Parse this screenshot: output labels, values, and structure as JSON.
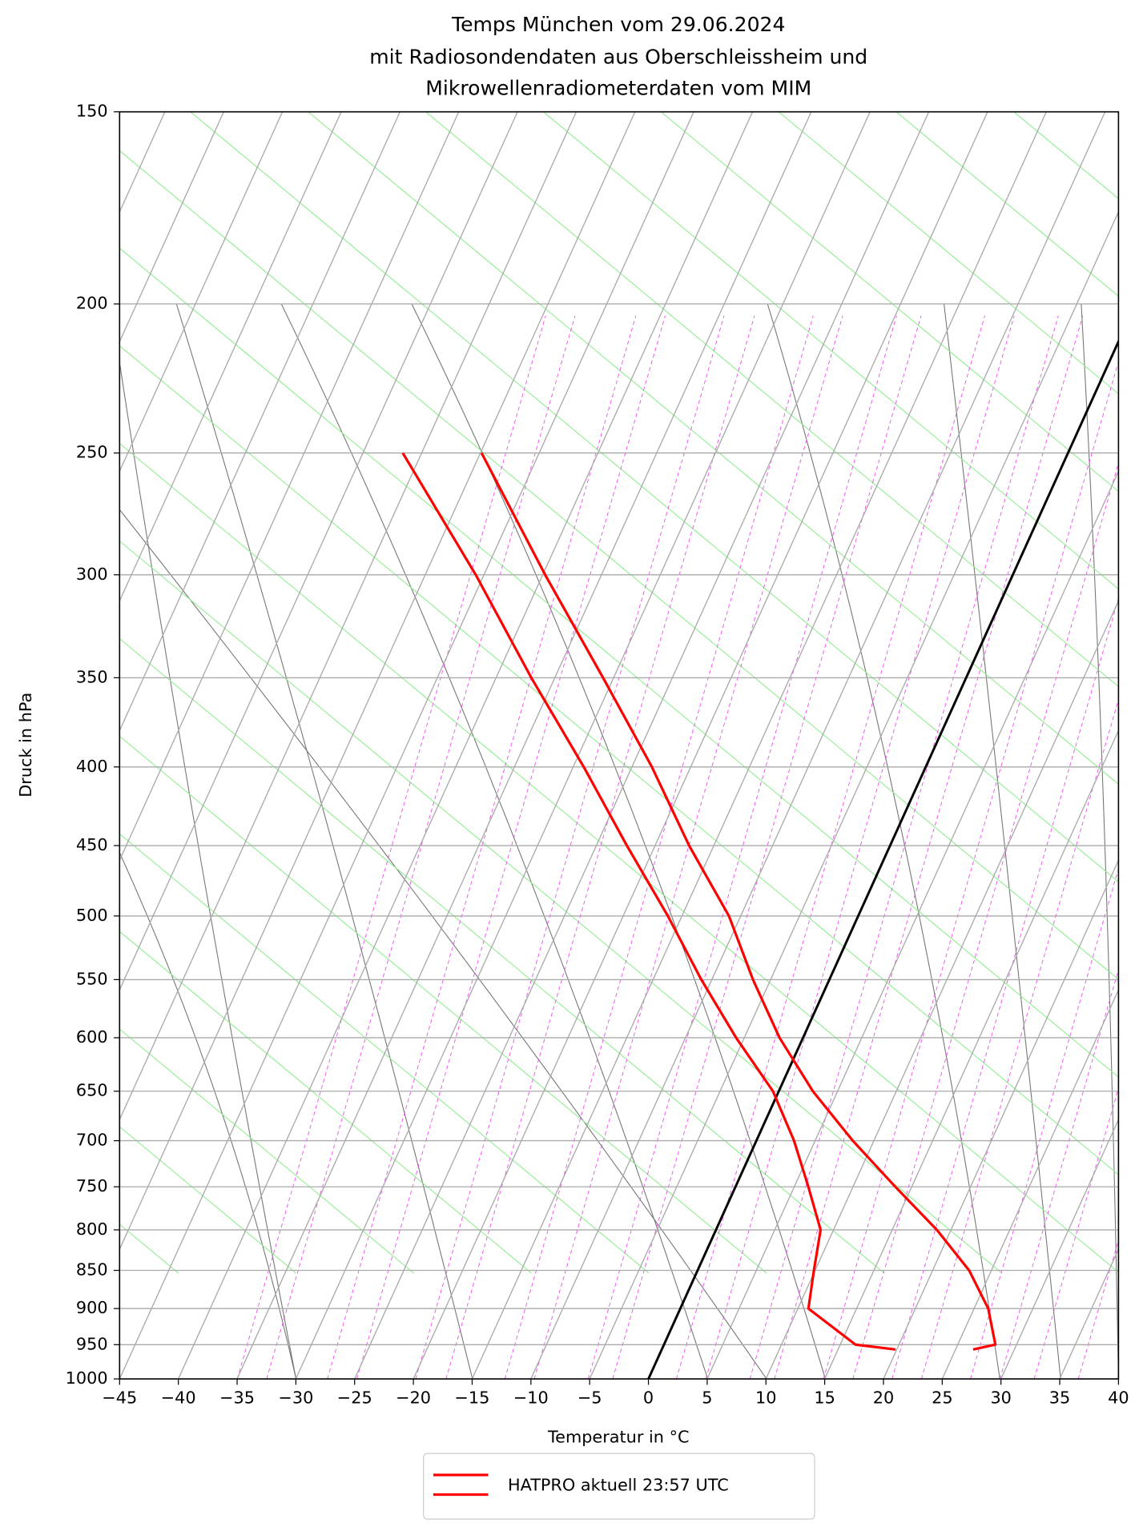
{
  "chart_data": {
    "type": "skewt",
    "title": [
      "Temps München vom 29.06.2024",
      "mit Radiosondendaten aus Oberschleissheim und",
      "Mikrowellenradiometerdaten vom MIM"
    ],
    "x_label": "Temperatur in °C",
    "y_label": "Druck in hPa",
    "x": [
      250,
      300,
      350,
      400,
      450,
      500,
      550,
      600,
      650,
      700,
      750,
      800,
      850,
      900,
      950,
      957
    ],
    "series": [
      {
        "name": "HATPRO aktuell 23:57 UTC",
        "color": "#ff0000",
        "values": [
          -49.9,
          -39.8,
          -30.9,
          -23.3,
          -17.1,
          -11.0,
          -6.5,
          -2.0,
          2.9,
          8.2,
          13.6,
          18.8,
          23.1,
          26.2,
          28.2,
          26.5
        ],
        "dewpoint_values": [
          -56.6,
          -45.7,
          -37.0,
          -29.1,
          -22.4,
          -16.2,
          -10.9,
          -5.7,
          -0.5,
          3.2,
          6.2,
          8.9,
          9.9,
          10.9,
          16.3,
          19.9
        ]
      }
    ],
    "xlim": [
      -45,
      40
    ],
    "xticks": [
      {
        "value": -45,
        "label": "−45"
      },
      {
        "value": -40,
        "label": "−40"
      },
      {
        "value": -35,
        "label": "−35"
      },
      {
        "value": -30,
        "label": "−30"
      },
      {
        "value": -25,
        "label": "−25"
      },
      {
        "value": -20,
        "label": "−20"
      },
      {
        "value": -15,
        "label": "−15"
      },
      {
        "value": -10,
        "label": "−10"
      },
      {
        "value": -5,
        "label": "−5"
      },
      0,
      5,
      10,
      15,
      20,
      25,
      30,
      35,
      40
    ],
    "ylim": [
      1000,
      150
    ],
    "yticks": [
      150,
      200,
      250,
      300,
      350,
      400,
      450,
      500,
      550,
      600,
      650,
      700,
      750,
      800,
      850,
      900,
      950,
      1000
    ],
    "log_y": true,
    "grid": true,
    "highlight_isotherm": 0,
    "legend": "below"
  }
}
